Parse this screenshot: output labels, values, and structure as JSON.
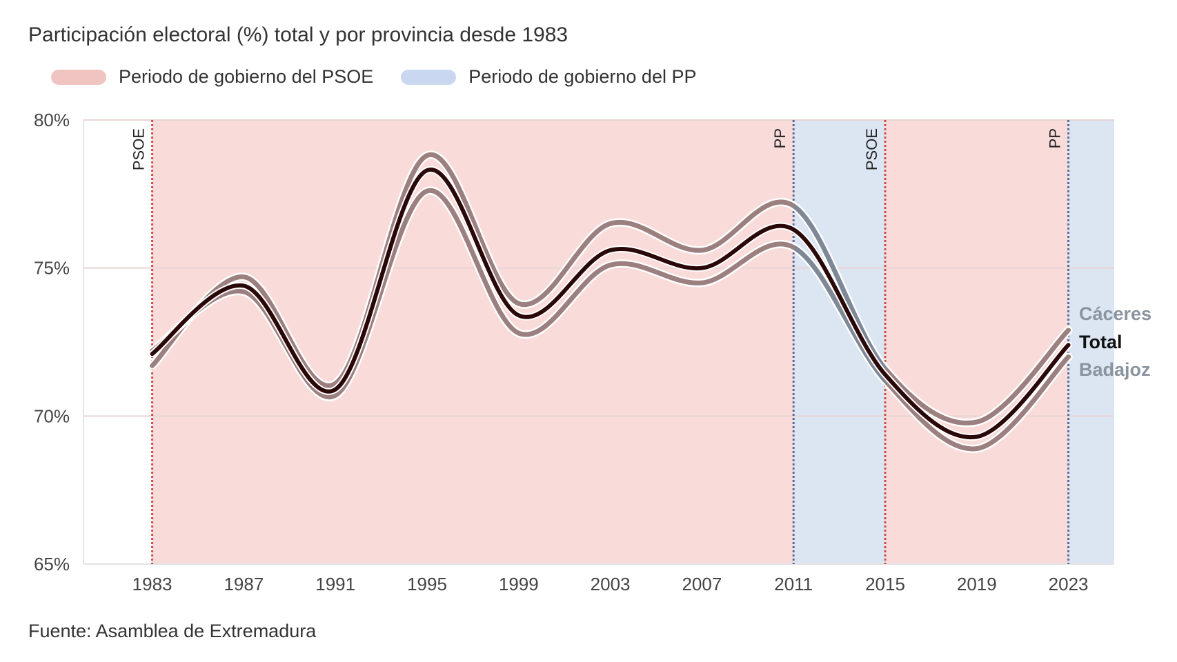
{
  "chart_data": {
    "type": "line",
    "title": "Participación electoral (%) total y por provincia desde 1983",
    "source": "Fuente: Asamblea de Extremadura",
    "x": [
      1983,
      1987,
      1991,
      1995,
      1999,
      2003,
      2007,
      2011,
      2015,
      2019,
      2023
    ],
    "xlim": [
      1980,
      2025
    ],
    "ylim": [
      65,
      80
    ],
    "y_ticks": [
      "65%",
      "70%",
      "75%",
      "80%"
    ],
    "y_tick_values": [
      65,
      70,
      75,
      80
    ],
    "x_ticks": [
      "1983",
      "1987",
      "1991",
      "1995",
      "1999",
      "2003",
      "2007",
      "2011",
      "2015",
      "2019",
      "2023"
    ],
    "grid": "horizontal",
    "series": [
      {
        "name": "Cáceres",
        "values": [
          71.7,
          74.7,
          71.1,
          78.8,
          73.8,
          76.5,
          75.6,
          77.1,
          71.6,
          69.8,
          72.9
        ],
        "color": "#8a949f"
      },
      {
        "name": "Badajoz",
        "values": [
          72.2,
          74.2,
          70.7,
          77.6,
          72.8,
          75.1,
          74.5,
          75.7,
          71.2,
          68.9,
          72.0
        ],
        "color": "#8a949f"
      },
      {
        "name": "Total",
        "values": [
          72.1,
          74.4,
          70.9,
          78.3,
          73.4,
          75.6,
          75.0,
          76.3,
          71.4,
          69.3,
          72.4
        ],
        "color": "#111111"
      }
    ],
    "legend": [
      {
        "label": "Periodo de gobierno del PSOE",
        "color": "#f0c4c0"
      },
      {
        "label": "Periodo de gobierno del PP",
        "color": "#c9d8f0"
      }
    ],
    "periods": [
      {
        "party": "PSOE",
        "start": 1983,
        "end": 2011,
        "color": "#f9dcda",
        "line_color": "#c9504a"
      },
      {
        "party": "PP",
        "start": 2011,
        "end": 2015,
        "color": "#dce6f3",
        "line_color": "#5a6a9a"
      },
      {
        "party": "PSOE",
        "start": 2015,
        "end": 2023,
        "color": "#f9dcda",
        "line_color": "#c9504a"
      },
      {
        "party": "PP",
        "start": 2023,
        "end": 2025,
        "color": "#dce6f3",
        "line_color": "#5a6a9a"
      }
    ]
  }
}
